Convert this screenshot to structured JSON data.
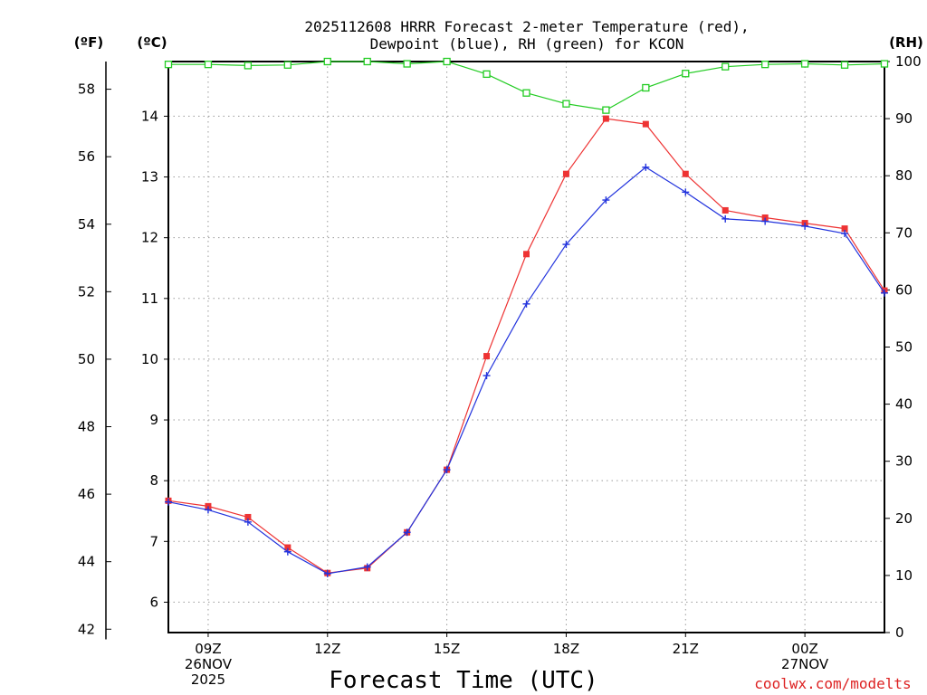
{
  "chart_data": {
    "type": "line",
    "title_line1": "2025112608 HRRR Forecast 2-meter Temperature (red),",
    "title_line2": "Dewpoint (blue), RH (green) for KCON",
    "xlabel": "Forecast Time (UTC)",
    "credit": "coolwx.com/modelts",
    "axis_headers": {
      "fahrenheit": "(ºF)",
      "celsius": "(ºC)",
      "rh": "(RH)"
    },
    "x_range_hours": [
      0,
      18
    ],
    "x_ticks": [
      {
        "hour": 1,
        "line1": "09Z",
        "line2": "26NOV",
        "line3": "2025"
      },
      {
        "hour": 4,
        "line1": "12Z",
        "line2": "",
        "line3": ""
      },
      {
        "hour": 7,
        "line1": "15Z",
        "line2": "",
        "line3": ""
      },
      {
        "hour": 10,
        "line1": "18Z",
        "line2": "",
        "line3": ""
      },
      {
        "hour": 13,
        "line1": "21Z",
        "line2": "",
        "line3": ""
      },
      {
        "hour": 16,
        "line1": "00Z",
        "line2": "27NOV",
        "line3": ""
      }
    ],
    "y_celsius": {
      "min": 5.5,
      "max": 14.9,
      "ticks": [
        "6",
        "7",
        "8",
        "9",
        "10",
        "11",
        "12",
        "13",
        "14"
      ]
    },
    "y_fahrenheit": {
      "ticks": [
        "42",
        "44",
        "46",
        "48",
        "50",
        "52",
        "54",
        "56",
        "58"
      ]
    },
    "y_rh": {
      "min": 0,
      "max": 100,
      "ticks": [
        "0",
        "10",
        "20",
        "30",
        "40",
        "50",
        "60",
        "70",
        "80",
        "90",
        "100"
      ]
    },
    "x": [
      0,
      1,
      2,
      3,
      4,
      5,
      6,
      7,
      8,
      9,
      10,
      11,
      12,
      13,
      14,
      15,
      16,
      17,
      18
    ],
    "series": [
      {
        "name": "Temperature",
        "unit": "C",
        "color": "#ee3333",
        "marker": "square-filled",
        "values": [
          7.67,
          7.58,
          7.4,
          6.9,
          6.48,
          6.56,
          7.15,
          8.18,
          10.05,
          11.73,
          13.05,
          13.96,
          13.87,
          13.05,
          12.45,
          12.33,
          12.24,
          12.15,
          11.13
        ]
      },
      {
        "name": "Dewpoint",
        "unit": "C",
        "color": "#2233dd",
        "marker": "plus",
        "values": [
          7.65,
          7.52,
          7.32,
          6.83,
          6.47,
          6.58,
          7.15,
          8.18,
          9.73,
          10.91,
          11.89,
          12.62,
          13.16,
          12.75,
          12.31,
          12.27,
          12.19,
          12.07,
          11.09
        ]
      },
      {
        "name": "RH",
        "unit": "%",
        "color": "#22cc22",
        "marker": "square-open",
        "values": [
          99.5,
          99.5,
          99.3,
          99.4,
          100,
          100,
          99.6,
          100,
          97.8,
          94.5,
          92.6,
          91.5,
          95.4,
          97.9,
          99.1,
          99.5,
          99.6,
          99.4,
          99.6
        ]
      }
    ]
  }
}
